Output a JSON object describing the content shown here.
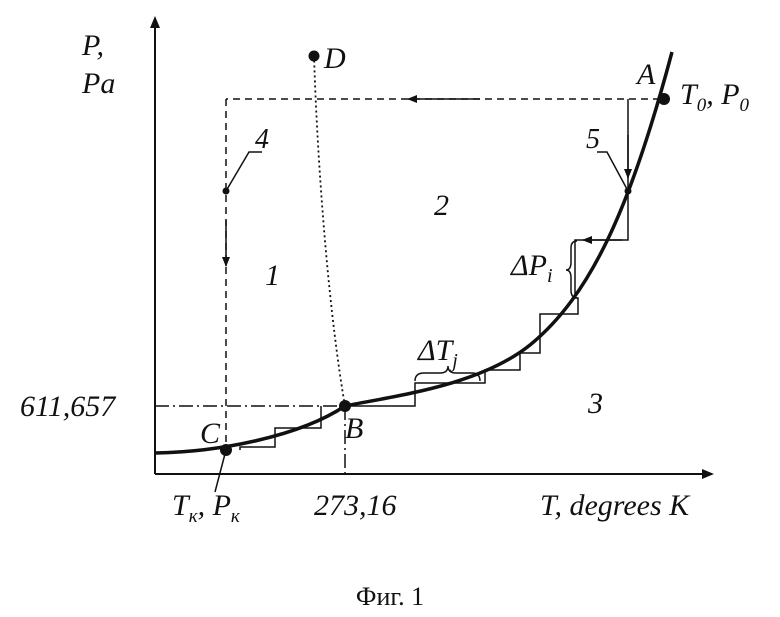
{
  "axes": {
    "y_label_line1": "P,",
    "y_label_line2": "Pa",
    "x_label": "T, degrees K",
    "y_tick": "611,657",
    "x_tick": "273,16"
  },
  "points": {
    "A": "A",
    "B": "B",
    "C": "C",
    "D": "D"
  },
  "state_A_T": "T",
  "state_A_T_sub": "0",
  "state_A_P": ", P",
  "state_A_P_sub": "0",
  "state_C_T": "T",
  "state_C_T_sub": "к",
  "state_C_P": ", P",
  "state_C_P_sub": "к",
  "regions": [
    "1",
    "2",
    "3"
  ],
  "markers": [
    "4",
    "5"
  ],
  "delta_P": "ΔP",
  "delta_P_sub": "i",
  "delta_T": "ΔT",
  "delta_T_sub": "j",
  "caption": "Фиг. 1"
}
